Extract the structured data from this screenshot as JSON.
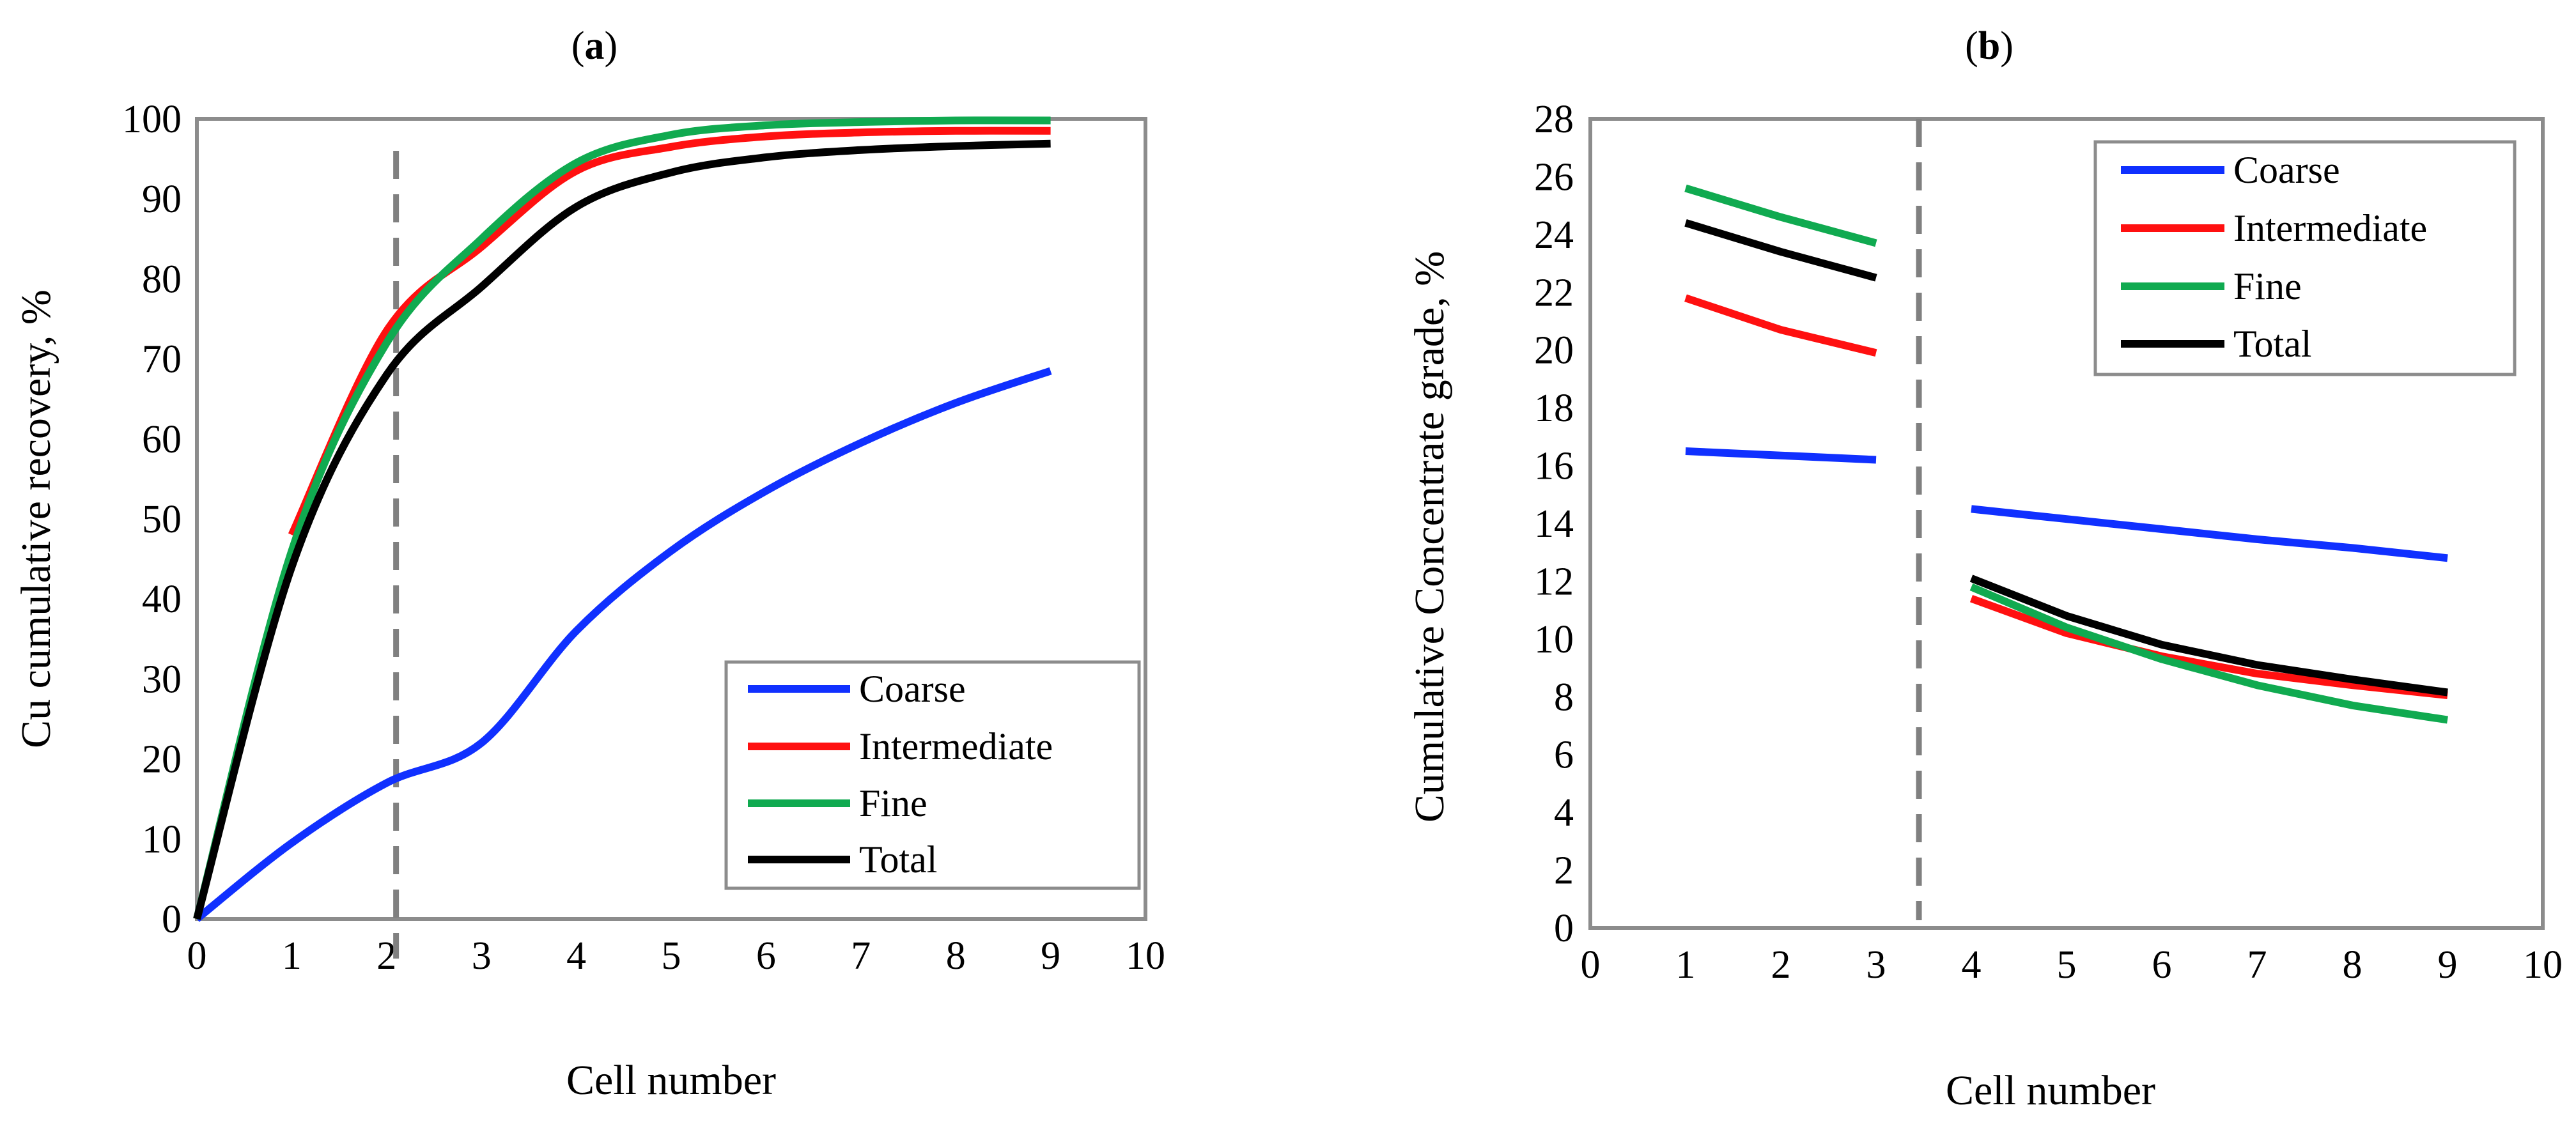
{
  "chart_data": [
    {
      "type": "line",
      "panel_label_open": "(",
      "panel_letter": "a",
      "panel_label_close": ")",
      "xlabel": "Cell number",
      "ylabel": "Cu cumulative recovery, %",
      "xlim": [
        0,
        10
      ],
      "ylim": [
        0,
        100
      ],
      "xticks": [
        0,
        1,
        2,
        3,
        4,
        5,
        6,
        7,
        8,
        9,
        10
      ],
      "yticks": [
        0,
        10,
        20,
        30,
        40,
        50,
        60,
        70,
        80,
        90,
        100
      ],
      "grid": false,
      "legend_position": "bottom-right",
      "vline": {
        "x": 2.1,
        "style": "dashed",
        "color": "#808080"
      },
      "series": [
        {
          "name": "Coarse",
          "color": "#1030ff",
          "x": [
            0,
            1,
            2,
            3,
            4,
            5,
            6,
            7,
            8,
            9
          ],
          "y": [
            0,
            9.5,
            17,
            22,
            36,
            46,
            53.5,
            59.5,
            64.5,
            68.5
          ]
        },
        {
          "name": "Intermediate",
          "color": "#ff1010",
          "x": [
            1,
            2,
            3,
            4,
            5,
            6,
            7,
            8,
            9
          ],
          "y": [
            48,
            73.5,
            84,
            93.5,
            96.5,
            97.8,
            98.3,
            98.5,
            98.5
          ]
        },
        {
          "name": "Fine",
          "color": "#10aa50",
          "x": [
            0,
            1,
            2,
            3,
            4,
            5,
            6,
            7,
            8,
            9
          ],
          "y": [
            0,
            46,
            72,
            85,
            94.5,
            98,
            99.2,
            99.6,
            99.8,
            99.8
          ]
        },
        {
          "name": "Total",
          "color": "#000000",
          "x": [
            0,
            1,
            2,
            3,
            4,
            5,
            6,
            7,
            8,
            9
          ],
          "y": [
            0,
            44,
            68,
            79,
            89,
            93.3,
            95.2,
            96.1,
            96.6,
            96.9
          ]
        }
      ]
    },
    {
      "type": "line",
      "panel_label_open": "(",
      "panel_letter": "b",
      "panel_label_close": ")",
      "xlabel": "Cell number",
      "ylabel": "Cumulative Concentrate grade, %",
      "xlim": [
        0,
        10
      ],
      "ylim": [
        0,
        28
      ],
      "xticks": [
        0,
        1,
        2,
        3,
        4,
        5,
        6,
        7,
        8,
        9,
        10
      ],
      "yticks": [
        0,
        2,
        4,
        6,
        8,
        10,
        12,
        14,
        16,
        18,
        20,
        22,
        24,
        26,
        28
      ],
      "grid": false,
      "legend_position": "top-right",
      "vline": {
        "x": 3.45,
        "style": "dashed",
        "color": "#808080"
      },
      "series": [
        {
          "name": "Coarse",
          "color": "#1030ff",
          "segments": [
            {
              "x": [
                1,
                2,
                3
              ],
              "y": [
                16.5,
                16.35,
                16.2
              ]
            },
            {
              "x": [
                4,
                5,
                6,
                7,
                8,
                9
              ],
              "y": [
                14.5,
                14.15,
                13.8,
                13.45,
                13.15,
                12.8
              ]
            }
          ]
        },
        {
          "name": "Intermediate",
          "color": "#ff1010",
          "segments": [
            {
              "x": [
                1,
                2,
                3
              ],
              "y": [
                21.8,
                20.7,
                19.9
              ]
            },
            {
              "x": [
                4,
                5,
                6,
                7,
                8,
                9
              ],
              "y": [
                11.4,
                10.2,
                9.4,
                8.8,
                8.4,
                8.05
              ]
            }
          ]
        },
        {
          "name": "Fine",
          "color": "#10aa50",
          "segments": [
            {
              "x": [
                1,
                2,
                3
              ],
              "y": [
                25.6,
                24.6,
                23.7
              ]
            },
            {
              "x": [
                4,
                5,
                6,
                7,
                8,
                9
              ],
              "y": [
                11.8,
                10.4,
                9.3,
                8.4,
                7.7,
                7.2
              ]
            }
          ]
        },
        {
          "name": "Total",
          "color": "#000000",
          "segments": [
            {
              "x": [
                1,
                2,
                3
              ],
              "y": [
                24.4,
                23.4,
                22.5
              ]
            },
            {
              "x": [
                4,
                5,
                6,
                7,
                8,
                9
              ],
              "y": [
                12.1,
                10.8,
                9.8,
                9.1,
                8.6,
                8.15
              ]
            }
          ]
        }
      ]
    }
  ]
}
